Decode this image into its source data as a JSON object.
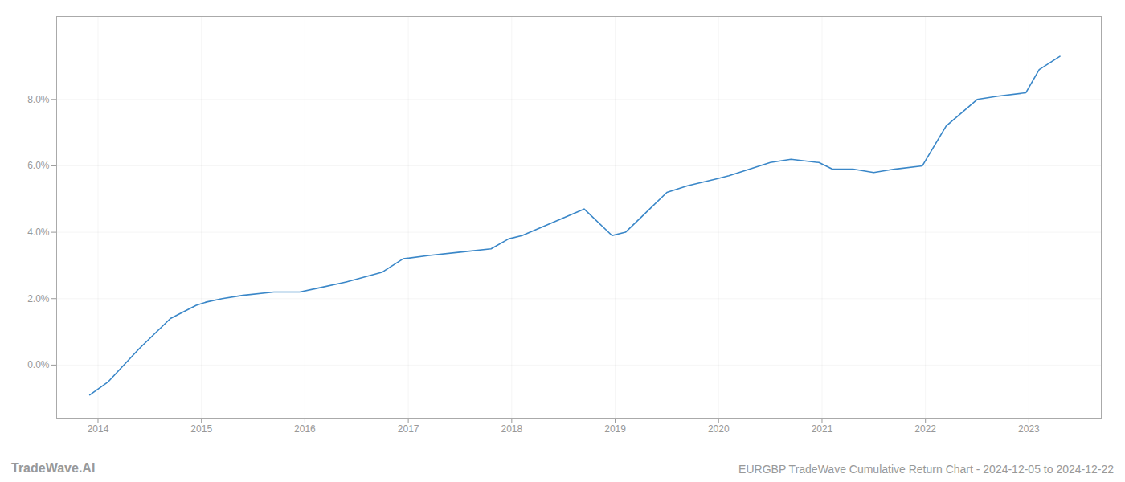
{
  "chart_data": {
    "type": "line",
    "title": "EURGBP TradeWave Cumulative Return Chart - 2024-12-05 to 2024-12-22",
    "annotations": [
      "TradeWave.AI"
    ],
    "x": [
      2013.92,
      2014.1,
      2014.4,
      2014.7,
      2014.95,
      2015.05,
      2015.2,
      2015.4,
      2015.7,
      2015.95,
      2016.1,
      2016.4,
      2016.75,
      2016.95,
      2017.2,
      2017.5,
      2017.8,
      2017.97,
      2018.1,
      2018.4,
      2018.7,
      2018.97,
      2019.1,
      2019.3,
      2019.5,
      2019.7,
      2019.97,
      2020.1,
      2020.3,
      2020.5,
      2020.7,
      2020.97,
      2021.1,
      2021.3,
      2021.5,
      2021.7,
      2021.97,
      2022.2,
      2022.5,
      2022.7,
      2022.97,
      2023.1,
      2023.3
    ],
    "values": [
      -0.009,
      -0.005,
      0.005,
      0.014,
      0.018,
      0.019,
      0.02,
      0.021,
      0.022,
      0.022,
      0.023,
      0.025,
      0.028,
      0.032,
      0.033,
      0.034,
      0.035,
      0.038,
      0.039,
      0.043,
      0.047,
      0.039,
      0.04,
      0.046,
      0.052,
      0.054,
      0.056,
      0.057,
      0.059,
      0.061,
      0.062,
      0.061,
      0.059,
      0.059,
      0.058,
      0.059,
      0.06,
      0.072,
      0.08,
      0.081,
      0.082,
      0.089,
      0.093
    ],
    "color": "#3a87c8",
    "xlim": [
      2013.6,
      2023.7
    ],
    "ylim": [
      -0.016,
      0.105
    ],
    "xticks": [
      2014,
      2015,
      2016,
      2017,
      2018,
      2019,
      2020,
      2021,
      2022,
      2023
    ],
    "yticks": [
      {
        "value": 0.0,
        "label": "0.0%"
      },
      {
        "value": 0.02,
        "label": "2.0%"
      },
      {
        "value": 0.04,
        "label": "4.0%"
      },
      {
        "value": 0.06,
        "label": "6.0%"
      },
      {
        "value": 0.08,
        "label": "8.0%"
      }
    ],
    "grid": true
  }
}
